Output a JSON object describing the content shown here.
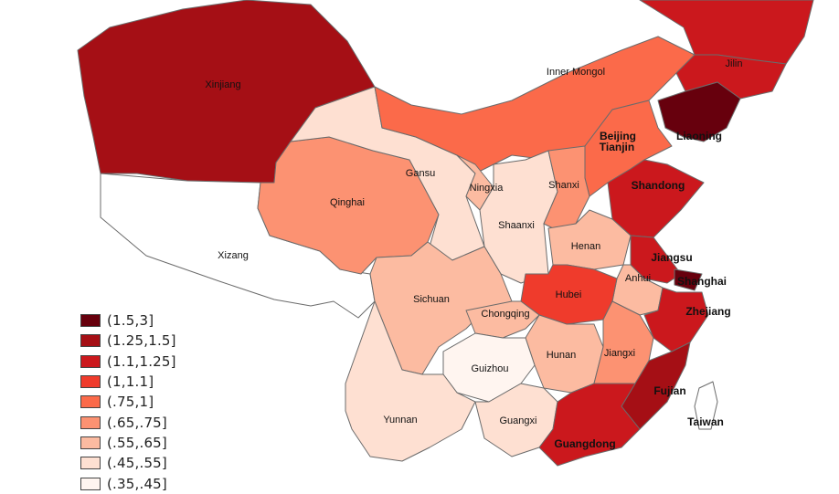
{
  "map": {
    "legend": [
      {
        "label": "(1.5,3]",
        "color": "#67000d"
      },
      {
        "label": "(1.25,1.5]",
        "color": "#a50f15"
      },
      {
        "label": "(1.1,1.25]",
        "color": "#cb181d"
      },
      {
        "label": "(1,1.1]",
        "color": "#ef3b2c"
      },
      {
        "label": "(.75,1]",
        "color": "#fb6a4a"
      },
      {
        "label": "(.65,.75]",
        "color": "#fc9272"
      },
      {
        "label": "(.55,.65]",
        "color": "#fcbba1"
      },
      {
        "label": "(.45,.55]",
        "color": "#fee0d2"
      },
      {
        "label": "(.35,.45]",
        "color": "#fff5f0"
      }
    ],
    "regions": [
      {
        "id": "xinjiang",
        "name": "Xinjiang",
        "fill": "#a50f15"
      },
      {
        "id": "xizang",
        "name": "Xizang",
        "fill": "#ffffff"
      },
      {
        "id": "qinghai",
        "name": "Qinghai",
        "fill": "#fc9272"
      },
      {
        "id": "gansu",
        "name": "Gansu",
        "fill": "#fee0d2"
      },
      {
        "id": "inner-mongol",
        "name": "Inner Mongol",
        "fill": "#fb6a4a"
      },
      {
        "id": "heilongjiang",
        "name": "",
        "fill": "#cb181d"
      },
      {
        "id": "jilin",
        "name": "Jilin",
        "fill": "#cb181d"
      },
      {
        "id": "liaoning",
        "name": "Liaoning",
        "fill": "#67000d"
      },
      {
        "id": "beijing",
        "name": "Beijing",
        "fill": "#67000d"
      },
      {
        "id": "tianjin",
        "name": "Tianjin",
        "fill": "#cb181d"
      },
      {
        "id": "hebei",
        "name": "",
        "fill": "#fb6a4a"
      },
      {
        "id": "ningxia",
        "name": "Ningxia",
        "fill": "#fcbba1"
      },
      {
        "id": "shaanxi",
        "name": "Shaanxi",
        "fill": "#fee0d2"
      },
      {
        "id": "shanxi",
        "name": "Shanxi",
        "fill": "#fc9272"
      },
      {
        "id": "shandong",
        "name": "Shandong",
        "fill": "#cb181d"
      },
      {
        "id": "henan",
        "name": "Henan",
        "fill": "#fcbba1"
      },
      {
        "id": "jiangsu",
        "name": "Jiangsu",
        "fill": "#cb181d"
      },
      {
        "id": "anhui",
        "name": "Anhui",
        "fill": "#fcbba1"
      },
      {
        "id": "shanghai",
        "name": "Shanghai",
        "fill": "#67000d"
      },
      {
        "id": "hubei",
        "name": "Hubei",
        "fill": "#ef3b2c"
      },
      {
        "id": "sichuan",
        "name": "Sichuan",
        "fill": "#fcbba1"
      },
      {
        "id": "chongqing",
        "name": "Chongqing",
        "fill": "#fcbba1"
      },
      {
        "id": "zhejiang",
        "name": "Zhejiang",
        "fill": "#cb181d"
      },
      {
        "id": "hunan",
        "name": "Hunan",
        "fill": "#fcbba1"
      },
      {
        "id": "jiangxi",
        "name": "Jiangxi",
        "fill": "#fc9272"
      },
      {
        "id": "guizhou",
        "name": "Guizhou",
        "fill": "#fff5f0"
      },
      {
        "id": "yunnan",
        "name": "Yunnan",
        "fill": "#fee0d2"
      },
      {
        "id": "fujian",
        "name": "Fujian",
        "fill": "#a50f15"
      },
      {
        "id": "guangxi",
        "name": "Guangxi",
        "fill": "#fee0d2"
      },
      {
        "id": "guangdong",
        "name": "Guangdong",
        "fill": "#cb181d"
      },
      {
        "id": "taiwan",
        "name": "Taiwan",
        "fill": "#ffffff"
      }
    ]
  }
}
